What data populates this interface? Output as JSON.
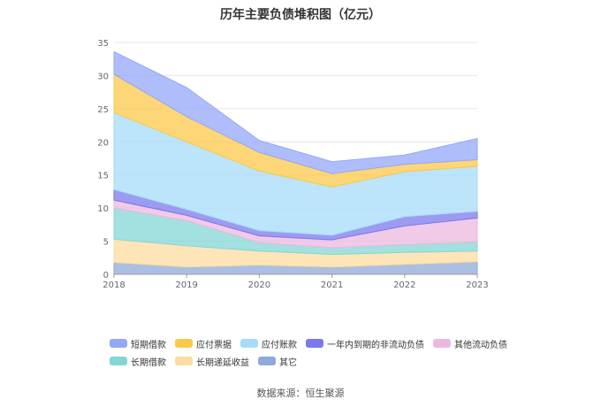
{
  "chart_data": {
    "type": "area",
    "stacked": true,
    "title": "历年主要负债堆积图（亿元）",
    "x": [
      "2018",
      "2019",
      "2020",
      "2021",
      "2022",
      "2023"
    ],
    "ylim": [
      0,
      35
    ],
    "yticks": [
      0,
      5,
      10,
      15,
      20,
      25,
      30,
      35
    ],
    "grid": true,
    "legend_position": "bottom",
    "series": [
      {
        "name": "其它",
        "color": "#8eaad8",
        "values": [
          1.8,
          1.1,
          1.4,
          1.1,
          1.5,
          1.9
        ]
      },
      {
        "name": "长期递延收益",
        "color": "#fcdca0",
        "values": [
          3.5,
          3.2,
          2.1,
          1.9,
          1.8,
          1.6
        ]
      },
      {
        "name": "长期借款",
        "color": "#84d6d6",
        "values": [
          4.7,
          3.8,
          1.3,
          1.0,
          1.2,
          1.4
        ]
      },
      {
        "name": "其他流动负债",
        "color": "#ecb8e0",
        "values": [
          1.2,
          0.8,
          1.0,
          1.2,
          2.8,
          3.6
        ]
      },
      {
        "name": "一年内到期的非流动负债",
        "color": "#7b79ec",
        "values": [
          1.6,
          0.9,
          0.8,
          0.7,
          1.4,
          1.0
        ]
      },
      {
        "name": "应付账款",
        "color": "#a6dcf9",
        "values": [
          11.6,
          10.2,
          9.0,
          7.3,
          6.8,
          6.8
        ]
      },
      {
        "name": "应付票据",
        "color": "#fcc84a",
        "values": [
          5.8,
          3.8,
          2.8,
          2.0,
          1.1,
          1.0
        ]
      },
      {
        "name": "短期借款",
        "color": "#94a8f8",
        "values": [
          3.4,
          4.4,
          1.8,
          1.8,
          1.4,
          3.2
        ]
      }
    ]
  },
  "legend": {
    "row1": [
      "短期借款",
      "应付票据",
      "应付账款",
      "一年内到期的非流动负债",
      "其他流动负债"
    ],
    "row2": [
      "长期借款",
      "长期递延收益",
      "其它"
    ]
  },
  "source": "数据来源：恒生聚源"
}
